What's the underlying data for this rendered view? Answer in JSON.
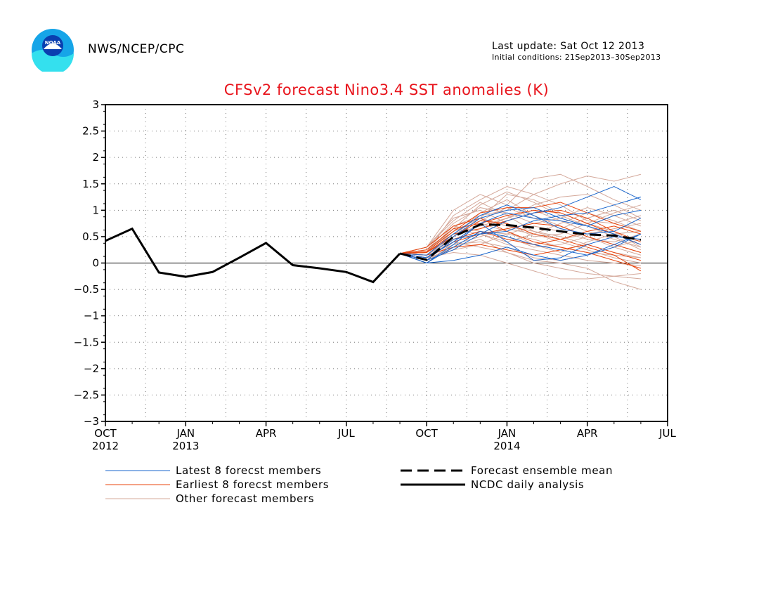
{
  "header": {
    "agency": "NWS/NCEP/CPC",
    "last_update": "Last update: Sat Oct 12 2013",
    "initial_conditions": "Initial conditions: 21Sep2013–30Sep2013",
    "logo_text": "NOAA"
  },
  "colors": {
    "title": "#e8141c",
    "latest_members": "#1a66cc",
    "earliest_members": "#e8440c",
    "other_members": "#d4a89a",
    "analysis": "#000000"
  },
  "chart_data": {
    "type": "line",
    "title": "CFSv2 forecast Nino3.4 SST anomalies (K)",
    "ylim": [
      -3,
      3
    ],
    "yticks": [
      "3",
      "2.5",
      "2",
      "1.5",
      "1",
      "0.5",
      "0",
      "−0.5",
      "−1",
      "−1.5",
      "−2",
      "−2.5",
      "−3"
    ],
    "x_axis_months_since_oct2012": [
      0,
      21
    ],
    "xticks": [
      {
        "label": "OCT",
        "year": "2012"
      },
      {
        "label": "JAN",
        "year": "2013"
      },
      {
        "label": "APR",
        "year": ""
      },
      {
        "label": "JUL",
        "year": ""
      },
      {
        "label": "OCT",
        "year": ""
      },
      {
        "label": "JAN",
        "year": "2014"
      },
      {
        "label": "APR",
        "year": ""
      },
      {
        "label": "JUL",
        "year": ""
      }
    ],
    "grid": true,
    "analysis": {
      "name": "NCDC daily analysis",
      "x": [
        "2012-10",
        "2012-11",
        "2012-12",
        "2013-01",
        "2013-02",
        "2013-03",
        "2013-04",
        "2013-05",
        "2013-06",
        "2013-07",
        "2013-08",
        "2013-09"
      ],
      "values": [
        0.42,
        0.65,
        -0.18,
        -0.26,
        -0.17,
        0.1,
        0.38,
        -0.04,
        -0.1,
        -0.17,
        -0.36,
        0.18
      ]
    },
    "ensemble_mean": {
      "name": "Forecast ensemble mean",
      "x": [
        "2013-09",
        "2013-10",
        "2013-11",
        "2013-12",
        "2014-01",
        "2014-02",
        "2014-03",
        "2014-04",
        "2014-05",
        "2014-06"
      ],
      "values": [
        0.18,
        0.06,
        0.5,
        0.73,
        0.72,
        0.67,
        0.6,
        0.54,
        0.52,
        0.44
      ]
    },
    "latest_members": {
      "name": "Latest 8 forecst members",
      "x": [
        "2013-09",
        "2013-10",
        "2013-11",
        "2013-12",
        "2014-01",
        "2014-02",
        "2014-03",
        "2014-04",
        "2014-05",
        "2014-06"
      ],
      "members": [
        [
          0.18,
          0.0,
          0.05,
          0.15,
          0.3,
          0.15,
          0.05,
          0.15,
          0.35,
          0.55
        ],
        [
          0.18,
          0.05,
          0.25,
          0.55,
          0.8,
          0.95,
          1.05,
          1.25,
          1.45,
          1.2
        ],
        [
          0.18,
          0.1,
          0.4,
          0.75,
          0.95,
          0.85,
          0.8,
          0.7,
          0.9,
          1.0
        ],
        [
          0.18,
          0.0,
          0.3,
          0.6,
          0.5,
          0.35,
          0.25,
          0.15,
          0.3,
          0.55
        ],
        [
          0.18,
          0.15,
          0.55,
          0.9,
          1.1,
          0.9,
          0.65,
          0.55,
          0.6,
          0.85
        ],
        [
          0.18,
          0.05,
          0.45,
          0.55,
          0.6,
          0.8,
          0.9,
          0.95,
          1.1,
          1.25
        ],
        [
          0.18,
          0.0,
          0.35,
          0.75,
          0.4,
          0.05,
          0.1,
          0.35,
          0.5,
          0.45
        ],
        [
          0.18,
          0.1,
          0.5,
          0.85,
          1.0,
          1.05,
          0.85,
          0.7,
          0.55,
          0.35
        ]
      ]
    },
    "earliest_members": {
      "name": "Earliest 8 forecst members",
      "x": [
        "2013-09",
        "2013-10",
        "2013-11",
        "2013-12",
        "2014-01",
        "2014-02",
        "2014-03",
        "2014-04",
        "2014-05",
        "2014-06"
      ],
      "members": [
        [
          0.18,
          0.22,
          0.6,
          0.95,
          1.05,
          1.05,
          1.15,
          0.95,
          0.75,
          0.6
        ],
        [
          0.18,
          0.3,
          0.7,
          0.85,
          0.6,
          0.4,
          0.3,
          0.2,
          0.05,
          -0.1
        ],
        [
          0.18,
          0.1,
          0.4,
          0.55,
          0.65,
          0.75,
          0.7,
          0.5,
          0.35,
          0.2
        ],
        [
          0.18,
          0.2,
          0.55,
          0.65,
          0.8,
          0.95,
          1.0,
          0.85,
          0.6,
          0.4
        ],
        [
          0.18,
          0.15,
          0.3,
          0.35,
          0.25,
          0.15,
          0.25,
          0.35,
          0.2,
          0.05
        ],
        [
          0.18,
          0.25,
          0.65,
          0.75,
          0.9,
          1.0,
          0.95,
          0.75,
          0.55,
          0.35
        ],
        [
          0.18,
          0.05,
          0.45,
          0.6,
          0.45,
          0.35,
          0.45,
          0.6,
          0.7,
          0.55
        ],
        [
          0.18,
          0.2,
          0.5,
          0.8,
          0.75,
          0.55,
          0.45,
          0.3,
          0.15,
          -0.15
        ]
      ]
    },
    "other_members": {
      "name": "Other forecast members",
      "x": [
        "2013-09",
        "2013-10",
        "2013-11",
        "2013-12",
        "2014-01",
        "2014-02",
        "2014-03",
        "2014-04",
        "2014-05",
        "2014-06"
      ],
      "members": [
        [
          0.18,
          0.2,
          0.9,
          1.2,
          1.45,
          1.3,
          1.5,
          1.65,
          1.55,
          1.68
        ],
        [
          0.18,
          0.3,
          1.0,
          1.3,
          1.1,
          1.6,
          1.68,
          1.45,
          1.2,
          1.0
        ],
        [
          0.18,
          0.1,
          0.4,
          0.3,
          0.2,
          0.05,
          0.0,
          -0.1,
          -0.35,
          -0.5
        ],
        [
          0.18,
          0.15,
          0.6,
          0.85,
          1.3,
          1.2,
          0.95,
          0.75,
          0.6,
          0.3
        ],
        [
          0.18,
          0.05,
          0.3,
          0.45,
          0.2,
          0.0,
          -0.1,
          -0.2,
          -0.25,
          -0.3
        ],
        [
          0.18,
          0.25,
          0.75,
          1.05,
          0.95,
          0.75,
          0.85,
          1.05,
          0.9,
          0.7
        ],
        [
          0.18,
          0.0,
          0.35,
          0.5,
          0.65,
          0.55,
          0.4,
          0.25,
          0.1,
          0.0
        ],
        [
          0.18,
          0.2,
          0.55,
          0.7,
          0.85,
          1.1,
          1.25,
          1.3,
          1.1,
          0.85
        ],
        [
          0.18,
          0.1,
          0.2,
          0.15,
          0.0,
          -0.15,
          -0.3,
          -0.3,
          -0.25,
          -0.2
        ],
        [
          0.18,
          0.3,
          0.85,
          1.0,
          0.75,
          0.5,
          0.55,
          0.75,
          0.95,
          1.1
        ],
        [
          0.18,
          0.15,
          0.45,
          0.6,
          0.55,
          0.7,
          0.6,
          0.45,
          0.4,
          0.55
        ],
        [
          0.18,
          0.05,
          0.5,
          0.95,
          1.2,
          0.9,
          0.7,
          0.5,
          0.3,
          0.15
        ],
        [
          0.18,
          0.25,
          0.65,
          0.55,
          0.35,
          0.25,
          0.15,
          0.05,
          0.0,
          -0.05
        ],
        [
          0.18,
          0.2,
          0.7,
          0.9,
          1.0,
          1.3,
          1.1,
          0.8,
          0.75,
          0.9
        ],
        [
          0.18,
          0.1,
          0.25,
          0.35,
          0.55,
          0.45,
          0.3,
          0.2,
          0.15,
          0.1
        ],
        [
          0.18,
          0.3,
          0.8,
          1.15,
          0.9,
          0.6,
          0.45,
          0.55,
          0.65,
          0.75
        ],
        [
          0.18,
          0.0,
          0.4,
          0.75,
          0.6,
          0.35,
          0.2,
          0.4,
          0.55,
          0.6
        ],
        [
          0.18,
          0.15,
          0.55,
          0.65,
          0.85,
          1.0,
          0.8,
          0.6,
          0.45,
          0.3
        ],
        [
          0.18,
          0.25,
          0.6,
          0.8,
          1.05,
          0.85,
          0.65,
          0.85,
          1.0,
          0.8
        ],
        [
          0.18,
          0.1,
          0.35,
          0.4,
          0.3,
          0.1,
          0.05,
          0.15,
          0.3,
          0.45
        ],
        [
          0.18,
          0.2,
          0.65,
          1.1,
          1.35,
          1.15,
          0.9,
          0.7,
          0.5,
          0.25
        ],
        [
          0.18,
          0.05,
          0.45,
          0.55,
          0.4,
          0.55,
          0.75,
          0.95,
          0.8,
          0.6
        ],
        [
          0.18,
          0.3,
          0.7,
          0.6,
          0.5,
          0.3,
          0.35,
          0.5,
          0.35,
          0.2
        ],
        [
          0.18,
          0.15,
          0.5,
          0.85,
          0.7,
          0.6,
          0.5,
          0.35,
          0.2,
          0.1
        ]
      ]
    },
    "legend": [
      {
        "label": "Latest 8 forecst members",
        "style": "thin-blue"
      },
      {
        "label": "Earliest 8 forecst members",
        "style": "thin-orange"
      },
      {
        "label": "Other forecast members",
        "style": "thin-pink"
      },
      {
        "label": "Forecast ensemble mean",
        "style": "dashed-black"
      },
      {
        "label": "NCDC daily analysis",
        "style": "thick-black"
      }
    ],
    "legend_position": "bottom"
  }
}
